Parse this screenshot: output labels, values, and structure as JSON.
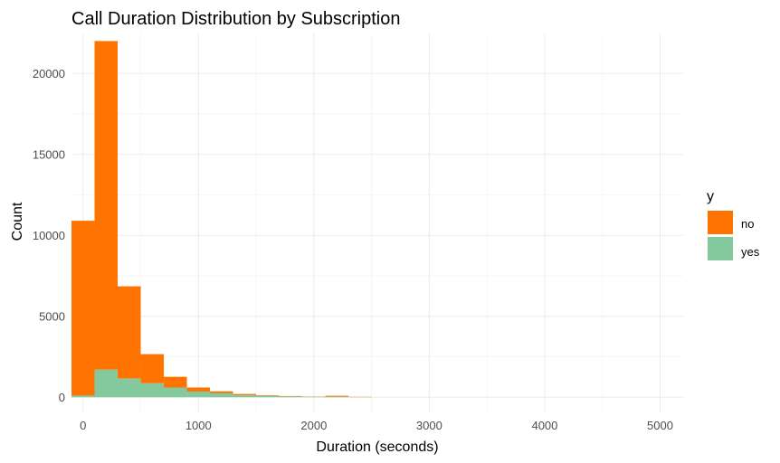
{
  "chart_data": {
    "type": "bar",
    "stacked": true,
    "title": "Call Duration Distribution by Subscription",
    "xlabel": "Duration (seconds)",
    "ylabel": "Count",
    "xlim": [
      -100,
      5200
    ],
    "ylim": [
      0,
      22000
    ],
    "bin_width": 200,
    "x": [
      0,
      200,
      400,
      600,
      800,
      1000,
      1200,
      1400,
      1600,
      1800,
      2000,
      2200,
      2400
    ],
    "x_ticks": [
      0,
      1000,
      2000,
      3000,
      4000,
      5000
    ],
    "y_ticks": [
      0,
      5000,
      10000,
      15000,
      20000
    ],
    "grid": true,
    "legend": {
      "title": "y",
      "position": "right"
    },
    "series": [
      {
        "name": "no",
        "color": "#ff7400",
        "values": [
          10800,
          20300,
          5700,
          1800,
          660,
          250,
          120,
          70,
          40,
          25,
          20,
          60,
          15
        ]
      },
      {
        "name": "yes",
        "color": "#84c99e",
        "values": [
          100,
          1700,
          1150,
          860,
          600,
          350,
          240,
          130,
          80,
          50,
          20,
          30,
          10
        ]
      }
    ]
  }
}
